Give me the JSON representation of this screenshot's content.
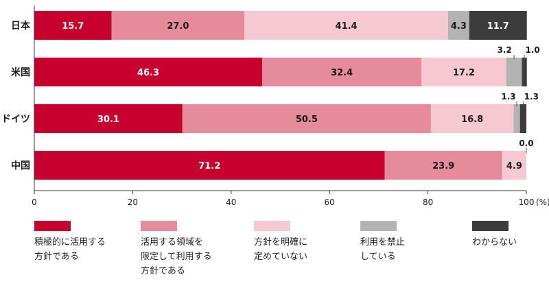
{
  "chart_data": {
    "type": "bar",
    "orientation": "horizontal",
    "stacked": true,
    "categories": [
      "日本",
      "米国",
      "ドイツ",
      "中国"
    ],
    "series": [
      {
        "name": "積極的に活用する\n方針である",
        "color": "#c8002d",
        "values": [
          15.7,
          46.3,
          30.1,
          71.2
        ]
      },
      {
        "name": "活用する領域を\n限定して利用する\n方針である",
        "color": "#e68b9c",
        "values": [
          27.0,
          32.4,
          50.5,
          23.9
        ]
      },
      {
        "name": "方針を明確に\n定めていない",
        "color": "#f5c8d2",
        "values": [
          41.4,
          17.2,
          16.8,
          4.9
        ]
      },
      {
        "name": "利用を禁止\nしている",
        "color": "#b3b3b3",
        "values": [
          4.3,
          3.2,
          1.3,
          0.0
        ]
      },
      {
        "name": "わからない",
        "color": "#3c3c3c",
        "values": [
          11.7,
          1.0,
          1.3,
          0.0
        ]
      }
    ],
    "value_labels": [
      [
        "15.7",
        "27.0",
        "41.4",
        "4.3",
        "11.7"
      ],
      [
        "46.3",
        "32.4",
        "17.2",
        "3.2",
        "1.0"
      ],
      [
        "30.1",
        "50.5",
        "16.8",
        "1.3",
        "1.3"
      ],
      [
        "71.2",
        "23.9",
        "4.9",
        "0.0",
        ""
      ]
    ],
    "x_ticks": [
      "0",
      "20",
      "40",
      "60",
      "80",
      "100"
    ],
    "x_unit": "(%)",
    "xlim": [
      0,
      100
    ],
    "grid": false,
    "legend_position": "bottom"
  }
}
